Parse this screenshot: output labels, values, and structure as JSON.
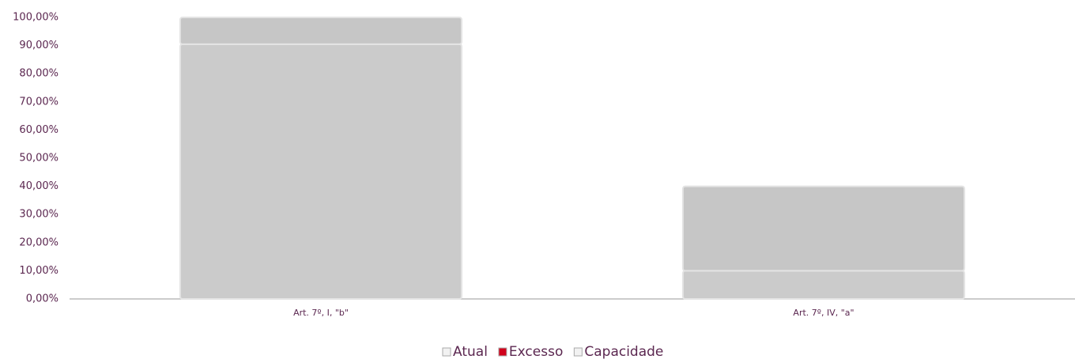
{
  "chart_data": {
    "type": "stacked_bar",
    "categories": [
      "Art. 7º, I, \"b\"",
      "Art. 7º, IV, \"a\""
    ],
    "series": [
      {
        "name": "Atual",
        "color": "#cbcbcb",
        "values": [
          90.5,
          10
        ]
      },
      {
        "name": "Excesso",
        "color": "#d0021b",
        "values": [
          0,
          0
        ]
      },
      {
        "name": "Capacidade",
        "color": "#c6c6c6",
        "values": [
          9.5,
          30
        ]
      }
    ],
    "ylim": [
      0,
      100
    ],
    "yticks": [
      {
        "value": 0,
        "label": "0,00%"
      },
      {
        "value": 10,
        "label": "10,00%"
      },
      {
        "value": 20,
        "label": "20,00%"
      },
      {
        "value": 30,
        "label": "30,00%"
      },
      {
        "value": 40,
        "label": "40,00%"
      },
      {
        "value": 50,
        "label": "50,00%"
      },
      {
        "value": 60,
        "label": "60,00%"
      },
      {
        "value": 70,
        "label": "70,00%"
      },
      {
        "value": 80,
        "label": "80,00%"
      },
      {
        "value": 90,
        "label": "90,00%"
      },
      {
        "value": 100,
        "label": "100,00%"
      }
    ],
    "legend": "bottom"
  }
}
